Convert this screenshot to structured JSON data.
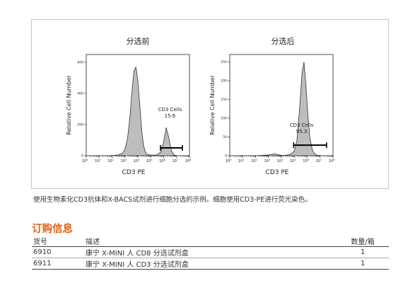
{
  "figure": {
    "caption": "使用生物素化CD3抗体和X-BACS试剂进行细胞分选的示例。细胞使用CD3-PE进行荧光染色。"
  },
  "order_section": {
    "title": "订购信息",
    "headers": {
      "id": "货号",
      "desc": "描述",
      "qty": "数量/箱"
    },
    "rows": [
      {
        "id": "6910",
        "desc": "康宁 X-MINI 人 CD8 分选试剂盒",
        "qty": "1"
      },
      {
        "id": "6911",
        "desc": "康宁 X-MINI 人 CD3 分选试剂盒",
        "qty": "1"
      }
    ]
  },
  "chart_data": [
    {
      "type": "area",
      "title": "分选前",
      "xlabel": "CD3 PE",
      "ylabel": "Relative Cell Number",
      "x_scale": "log",
      "xlim": [
        1,
        100000000
      ],
      "x_ticks": [
        {
          "base": "10",
          "exp": "0"
        },
        {
          "base": "10",
          "exp": "1"
        },
        {
          "base": "10",
          "exp": "2"
        },
        {
          "base": "10",
          "exp": "3"
        },
        {
          "base": "10",
          "exp": "4"
        },
        {
          "base": "10",
          "exp": "5"
        },
        {
          "base": "10",
          "exp": "6"
        },
        {
          "base": "10",
          "exp": "7"
        },
        {
          "base": "10",
          "exp": "8"
        }
      ],
      "ylim": [
        0,
        650
      ],
      "y_ticks": [
        "0",
        "200",
        "400",
        "600"
      ],
      "y_tick_values": [
        0,
        200,
        400,
        600
      ],
      "grid": false,
      "histogram": {
        "log10_x": [
          1.8,
          2.2,
          2.5,
          2.8,
          3.0,
          3.2,
          3.4,
          3.55,
          3.7,
          3.85,
          4.0,
          4.15,
          4.3,
          4.45,
          4.6,
          4.75,
          4.9,
          5.1,
          5.3,
          5.5,
          5.8,
          6.0,
          6.2,
          6.4,
          6.6,
          6.8,
          7.0
        ],
        "counts": [
          0,
          2,
          5,
          15,
          40,
          110,
          260,
          420,
          545,
          570,
          480,
          320,
          160,
          60,
          20,
          8,
          5,
          4,
          3,
          6,
          25,
          90,
          180,
          115,
          30,
          5,
          0
        ]
      },
      "gate": {
        "label": "CD3 Cells",
        "value": "15.6",
        "log10_range": [
          5.75,
          7.45
        ],
        "y": 50
      }
    },
    {
      "type": "area",
      "title": "分选后",
      "xlabel": "CD3 PE",
      "ylabel": "Relative Cell Number",
      "x_scale": "log",
      "xlim": [
        1,
        100000000
      ],
      "x_ticks": [
        {
          "base": "10",
          "exp": "0"
        },
        {
          "base": "10",
          "exp": "1"
        },
        {
          "base": "10",
          "exp": "2"
        },
        {
          "base": "10",
          "exp": "3"
        },
        {
          "base": "10",
          "exp": "4"
        },
        {
          "base": "10",
          "exp": "5"
        },
        {
          "base": "10",
          "exp": "6"
        },
        {
          "base": "10",
          "exp": "7"
        },
        {
          "base": "10",
          "exp": "8"
        }
      ],
      "ylim": [
        0,
        270
      ],
      "y_ticks": [
        "0",
        "50",
        "100",
        "150",
        "200",
        "250"
      ],
      "y_tick_values": [
        0,
        50,
        100,
        150,
        200,
        250
      ],
      "grid": false,
      "histogram": {
        "log10_x": [
          2.0,
          2.5,
          3.0,
          3.5,
          3.8,
          4.0,
          4.3,
          4.6,
          4.8,
          5.0,
          5.2,
          5.4,
          5.6,
          5.75,
          5.9,
          6.05,
          6.2,
          6.4,
          6.6,
          6.8,
          7.2
        ],
        "counts": [
          0,
          1,
          2,
          5,
          2,
          1,
          1,
          3,
          6,
          12,
          40,
          120,
          220,
          250,
          190,
          110,
          50,
          15,
          4,
          1,
          0
        ]
      },
      "gate": {
        "label": "CD3 Cells",
        "value": "95.3",
        "log10_range": [
          4.95,
          7.5
        ],
        "y": 28
      }
    }
  ]
}
